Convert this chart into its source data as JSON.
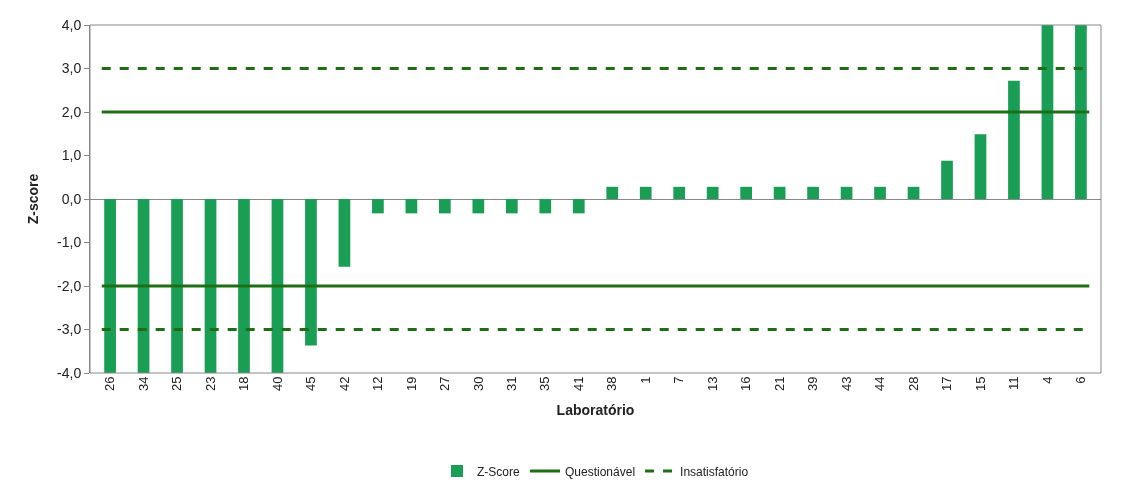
{
  "chart_data": {
    "type": "bar",
    "xlabel": "Laboratório",
    "ylabel": "Z-score",
    "categories": [
      "26",
      "34",
      "25",
      "23",
      "18",
      "40",
      "45",
      "42",
      "12",
      "19",
      "27",
      "30",
      "31",
      "35",
      "41",
      "38",
      "1",
      "7",
      "13",
      "16",
      "21",
      "39",
      "43",
      "44",
      "28",
      "17",
      "15",
      "11",
      "4",
      "6"
    ],
    "series": [
      {
        "name": "Z-Score",
        "color": "#1a9e55",
        "values": [
          -4.0,
          -4.0,
          -4.0,
          -4.0,
          -4.0,
          -4.0,
          -3.37,
          -1.56,
          -0.33,
          -0.33,
          -0.33,
          -0.33,
          -0.33,
          -0.33,
          -0.33,
          0.28,
          0.28,
          0.28,
          0.28,
          0.28,
          0.28,
          0.28,
          0.28,
          0.28,
          0.28,
          0.88,
          1.49,
          2.72,
          4.0,
          4.0
        ]
      }
    ],
    "ylim": [
      -4,
      4
    ],
    "yticks": [
      {
        "value": -4,
        "label": "-4,0"
      },
      {
        "value": -3,
        "label": "-3,0"
      },
      {
        "value": -2,
        "label": "-2,0"
      },
      {
        "value": -1,
        "label": "-1,0"
      },
      {
        "value": 0,
        "label": "0,0"
      },
      {
        "value": 1,
        "label": "1,0"
      },
      {
        "value": 2,
        "label": "2,0"
      },
      {
        "value": 3,
        "label": "3,0"
      },
      {
        "value": 4,
        "label": "4,0"
      }
    ],
    "ref_lines": [
      {
        "axis": "y",
        "value": 2,
        "label": "Questionável",
        "color": "#1e6e14",
        "line_style": "solid"
      },
      {
        "axis": "y",
        "value": -2,
        "color": "#1e6e14",
        "line_style": "solid"
      },
      {
        "axis": "y",
        "value": 3,
        "label": "Insatisfatório",
        "color": "#1e6e14",
        "line_style": "dashed"
      },
      {
        "axis": "y",
        "value": -3,
        "color": "#1e6e14",
        "line_style": "dashed"
      }
    ],
    "legend": "bottom"
  }
}
